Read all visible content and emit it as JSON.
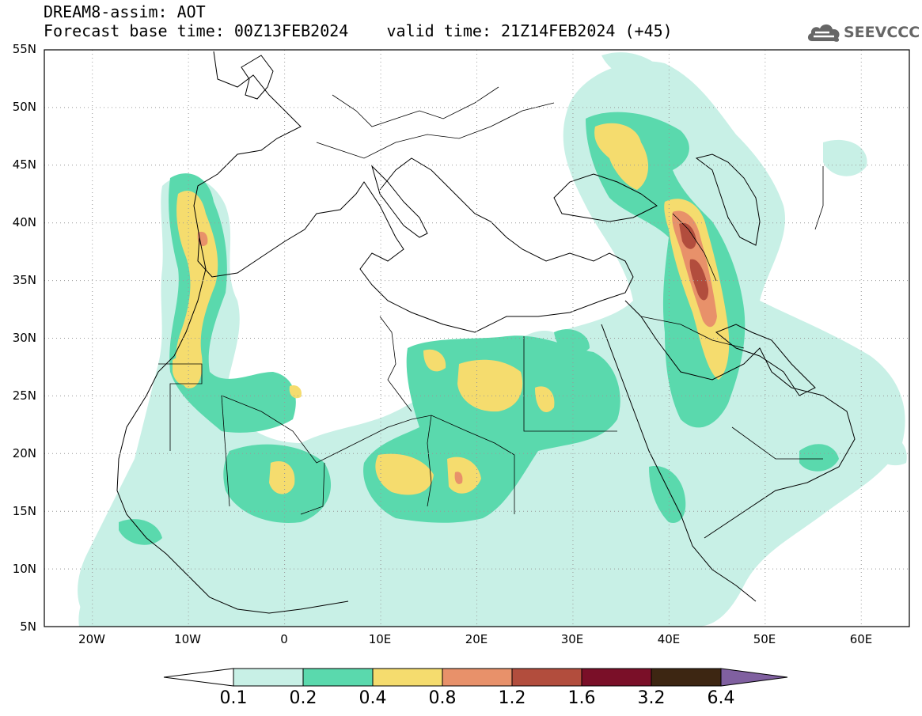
{
  "title": {
    "model_line": "DREAM8-assim: AOT",
    "base_time": "Forecast base time: 00Z13FEB2024",
    "valid_time": "valid time: 21Z14FEB2024 (+45)"
  },
  "logo": {
    "text": "SEEVCCC",
    "icon": "cloud-icon"
  },
  "axes": {
    "lat_labels": [
      "55N",
      "50N",
      "45N",
      "40N",
      "35N",
      "30N",
      "25N",
      "20N",
      "15N",
      "10N",
      "5N"
    ],
    "lon_labels": [
      "20W",
      "10W",
      "0",
      "10E",
      "20E",
      "30E",
      "40E",
      "50E",
      "60E"
    ],
    "lon_range": [
      -25,
      65
    ],
    "lat_range": [
      5,
      55
    ]
  },
  "colorbar": {
    "labels": [
      "0.1",
      "0.2",
      "0.4",
      "0.8",
      "1.2",
      "1.6",
      "3.2",
      "6.4"
    ],
    "colors": [
      "#c8f0e6",
      "#5ad9ad",
      "#f5dc6e",
      "#e8916a",
      "#b24d3d",
      "#7a0f28",
      "#3d2612",
      "#8060a0"
    ]
  },
  "palette": {
    "c01": "#c8f0e6",
    "c02": "#5ad9ad",
    "c04": "#f5dc6e",
    "c08": "#e8916a",
    "c12": "#b24d3d"
  }
}
